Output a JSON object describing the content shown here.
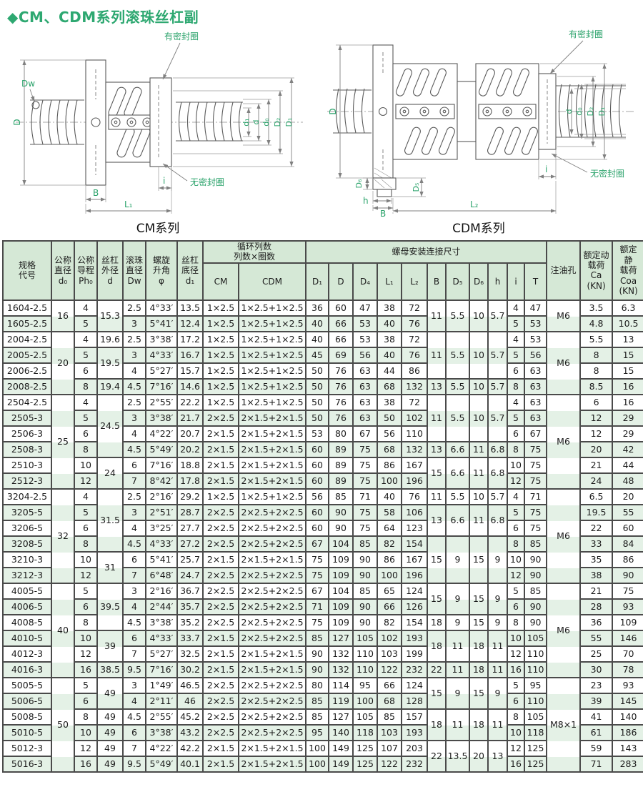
{
  "title": "◆CM、CDM系列滚珠丝杠副",
  "figures": {
    "cm": {
      "caption": "CM系列",
      "seal_top": "有密封圈",
      "seal_bottom": "无密封圈",
      "dim_Dw": "Dw",
      "dim_D": "D",
      "dim_d1": "d₁",
      "dim_d": "d",
      "dim_d0": "d₀",
      "dim_D2": "D₂",
      "dim_D1": "D₁",
      "dim_i": "i",
      "dim_B": "B",
      "dim_L1": "L₁"
    },
    "cdm": {
      "caption": "CDM系列",
      "seal_top": "有密封圈",
      "seal_bottom": "无密封圈",
      "dim_D": "D",
      "dim_d": "d",
      "dim_d0": "d₀",
      "dim_D2": "D₂",
      "dim_D1": "D₁",
      "dim_i": "i",
      "dim_D6": "D₆",
      "dim_D5": "D₅",
      "dim_h": "h",
      "dim_B": "B",
      "dim_L2": "L₂"
    }
  },
  "table": {
    "header": {
      "spec": "规格\n代号",
      "d0": "公称\n直径\nd₀",
      "ph0": "公称\n导程\nPh₀",
      "d": "丝杠\n外径\nd",
      "dw": "滚珠\n直径\nDw",
      "angle": "螺旋\n升角\nφ",
      "d1": "丝杠\n底径\nd₁",
      "circ_group": "循环列数\n列数×圈数",
      "cm": "CM",
      "cdm": "CDM",
      "nut_group": "螺母安装连接尺寸",
      "nut_cols": [
        "D₁",
        "D",
        "D₄",
        "L₁",
        "L₂",
        "B",
        "D₅",
        "D₆",
        "h",
        "i",
        "T"
      ],
      "oil": "注油孔",
      "ca": "额定动\n载荷\nCa\n(KN)",
      "coa": "额定\n静\n载荷\nCoa\n(KN)"
    },
    "rows": [
      {
        "code": "1604-2.5",
        "ph": "4",
        "dw": "2.5",
        "angle": "4°33′",
        "d1": "13.5",
        "cm": "1×2.5",
        "cdm": "1×2.5+1×2.5",
        "D1": "36",
        "D": "60",
        "D4": "47",
        "L1": "38",
        "L2": "72",
        "i": "4",
        "T": "47",
        "ca": "3.5",
        "coa": "6.3"
      },
      {
        "code": "1605-2.5",
        "ph": "5",
        "dw": "3",
        "angle": "5°41′",
        "d1": "12.4",
        "cm": "1×2.5",
        "cdm": "1×2.5+1×2.5",
        "D1": "40",
        "D": "66",
        "D4": "53",
        "L1": "40",
        "L2": "76",
        "i": "5",
        "T": "53",
        "ca": "4.8",
        "coa": "10.5"
      },
      {
        "code": "2004-2.5",
        "ph": "4",
        "dw": "2.5",
        "angle": "3°38′",
        "d1": "17.2",
        "cm": "1×2.5",
        "cdm": "1×2.5+1×2.5",
        "D1": "40",
        "D": "66",
        "D4": "53",
        "L1": "38",
        "L2": "72",
        "i": "4",
        "T": "53",
        "ca": "5.5",
        "coa": "13"
      },
      {
        "code": "2005-2.5",
        "ph": "5",
        "dw": "3",
        "angle": "4°33′",
        "d1": "16.7",
        "cm": "1×2.5",
        "cdm": "1×2.5+1×2.5",
        "D1": "45",
        "D": "69",
        "D4": "56",
        "L1": "40",
        "L2": "76",
        "i": "5",
        "T": "56",
        "ca": "8",
        "coa": "15"
      },
      {
        "code": "2006-2.5",
        "ph": "6",
        "dw": "4",
        "angle": "5°27′",
        "d1": "15.7",
        "cm": "1×2.5",
        "cdm": "1×2.5+1×2.5",
        "D1": "50",
        "D": "76",
        "D4": "63",
        "L1": "44",
        "L2": "86",
        "i": "6",
        "T": "63",
        "ca": "8",
        "coa": "15"
      },
      {
        "code": "2008-2.5",
        "ph": "8",
        "dw": "4.5",
        "angle": "7°16′",
        "d1": "14.6",
        "cm": "1×2.5",
        "cdm": "1×2.5+1×2.5",
        "D1": "50",
        "D": "76",
        "D4": "63",
        "L1": "68",
        "L2": "132",
        "i": "8",
        "T": "63",
        "ca": "8.5",
        "coa": "16"
      },
      {
        "code": "2504-2.5",
        "ph": "4",
        "dw": "2.5",
        "angle": "2°55′",
        "d1": "22.2",
        "cm": "1×2.5",
        "cdm": "1×2.5+1×2.5",
        "D1": "50",
        "D": "76",
        "D4": "63",
        "L1": "38",
        "L2": "72",
        "i": "4",
        "T": "63",
        "ca": "6",
        "coa": "16"
      },
      {
        "code": "2505-3",
        "ph": "5",
        "dw": "3",
        "angle": "3°38′",
        "d1": "21.7",
        "cm": "2×2.5",
        "cdm": "2×1.5+2×1.5",
        "D1": "50",
        "D": "76",
        "D4": "63",
        "L1": "50",
        "L2": "102",
        "i": "5",
        "T": "63",
        "ca": "12",
        "coa": "29"
      },
      {
        "code": "2506-3",
        "ph": "6",
        "dw": "4",
        "angle": "4°22′",
        "d1": "20.7",
        "cm": "2×1.5",
        "cdm": "2×1.5+2×1.5",
        "D1": "53",
        "D": "80",
        "D4": "67",
        "L1": "56",
        "L2": "110",
        "i": "6",
        "T": "67",
        "ca": "12",
        "coa": "29"
      },
      {
        "code": "2508-3",
        "ph": "8",
        "dw": "4.5",
        "angle": "5°49′",
        "d1": "20.2",
        "cm": "2×1.5",
        "cdm": "2×1.5+2×1.5",
        "D1": "60",
        "D": "89",
        "D4": "75",
        "L1": "68",
        "L2": "132",
        "i": "8",
        "T": "75",
        "ca": "20",
        "coa": "42"
      },
      {
        "code": "2510-3",
        "ph": "10",
        "dw": "6",
        "angle": "7°16′",
        "d1": "18.8",
        "cm": "2×1.5",
        "cdm": "2×1.5+2×1.5",
        "D1": "60",
        "D": "89",
        "D4": "75",
        "L1": "86",
        "L2": "167",
        "i": "10",
        "T": "75",
        "ca": "21",
        "coa": "44"
      },
      {
        "code": "2512-3",
        "ph": "12",
        "dw": "7",
        "angle": "8°42′",
        "d1": "17.8",
        "cm": "2×1.5",
        "cdm": "2×1.5+2×1.5",
        "D1": "60",
        "D": "89",
        "D4": "75",
        "L1": "100",
        "L2": "196",
        "i": "12",
        "T": "75",
        "ca": "24",
        "coa": "48"
      },
      {
        "code": "3204-2.5",
        "ph": "4",
        "dw": "2.5",
        "angle": "2°16′",
        "d1": "29.2",
        "cm": "1×2.5",
        "cdm": "1×2.5+1×2.5",
        "D1": "56",
        "D": "85",
        "D4": "71",
        "L1": "40",
        "L2": "76",
        "i": "4",
        "T": "71",
        "ca": "6.5",
        "coa": "20"
      },
      {
        "code": "3205-5",
        "ph": "5",
        "dw": "3",
        "angle": "2°51′",
        "d1": "28.7",
        "cm": "2×2.5",
        "cdm": "2×2.5+2×2.5",
        "D1": "60",
        "D": "90",
        "D4": "75",
        "L1": "58",
        "L2": "106",
        "i": "5",
        "T": "75",
        "ca": "19.5",
        "coa": "55"
      },
      {
        "code": "3206-5",
        "ph": "6",
        "dw": "4",
        "angle": "3°25′",
        "d1": "27.7",
        "cm": "2×2.5",
        "cdm": "2×2.5+2×2.5",
        "D1": "60",
        "D": "90",
        "D4": "75",
        "L1": "64",
        "L2": "123",
        "i": "6",
        "T": "75",
        "ca": "22",
        "coa": "60"
      },
      {
        "code": "3208-5",
        "ph": "8",
        "dw": "4.5",
        "angle": "4°33′",
        "d1": "27.2",
        "cm": "2×2.5",
        "cdm": "2×2.5+2×2.5",
        "D1": "67",
        "D": "104",
        "D4": "85",
        "L1": "82",
        "L2": "154",
        "i": "8",
        "T": "85",
        "ca": "33",
        "coa": "84"
      },
      {
        "code": "3210-3",
        "ph": "10",
        "dw": "6",
        "angle": "5°41′",
        "d1": "25.7",
        "cm": "2×1.5",
        "cdm": "2×1.5+2×1.5",
        "D1": "75",
        "D": "109",
        "D4": "90",
        "L1": "86",
        "L2": "167",
        "i": "10",
        "T": "90",
        "ca": "35",
        "coa": "86"
      },
      {
        "code": "3212-3",
        "ph": "12",
        "dw": "7",
        "angle": "6°48′",
        "d1": "24.7",
        "cm": "2×2.5",
        "cdm": "2×2.5+2×2.5",
        "D1": "75",
        "D": "109",
        "D4": "90",
        "L1": "100",
        "L2": "196",
        "i": "12",
        "T": "90",
        "ca": "38",
        "coa": "90"
      },
      {
        "code": "4005-5",
        "ph": "5",
        "dw": "3",
        "angle": "2°16′",
        "d1": "36.7",
        "cm": "2×2.5",
        "cdm": "2×2.5+2×2.5",
        "D1": "67",
        "D": "104",
        "D4": "85",
        "L1": "65",
        "L2": "124",
        "i": "5",
        "T": "85",
        "ca": "21",
        "coa": "75"
      },
      {
        "code": "4006-5",
        "ph": "6",
        "dw": "4",
        "angle": "2°44′",
        "d1": "35.7",
        "cm": "2×2.5",
        "cdm": "2×2.5+2×2.5",
        "D1": "71",
        "D": "109",
        "D4": "90",
        "L1": "66",
        "L2": "126",
        "i": "6",
        "T": "90",
        "ca": "28",
        "coa": "93"
      },
      {
        "code": "4008-5",
        "ph": "8",
        "dw": "4.5",
        "angle": "3°38′",
        "d1": "35.2",
        "cm": "2×2.5",
        "cdm": "2×2.5+2×2.5",
        "D1": "75",
        "D": "109",
        "D4": "90",
        "L1": "82",
        "L2": "154",
        "i": "8",
        "T": "90",
        "ca": "36",
        "coa": "109"
      },
      {
        "code": "4010-5",
        "ph": "10",
        "dw": "6",
        "angle": "4°33′",
        "d1": "33.7",
        "cm": "2×1.5",
        "cdm": "2×2.5+2×2.5",
        "D1": "85",
        "D": "127",
        "D4": "105",
        "L1": "102",
        "L2": "193",
        "i": "10",
        "T": "105",
        "ca": "55",
        "coa": "146"
      },
      {
        "code": "4012-3",
        "ph": "12",
        "dw": "7",
        "angle": "5°27′",
        "d1": "32.5",
        "cm": "2×1.5",
        "cdm": "2×1.5+2×1.5",
        "D1": "90",
        "D": "132",
        "D4": "110",
        "L1": "103",
        "L2": "199",
        "i": "12",
        "T": "110",
        "ca": "25",
        "coa": "70"
      },
      {
        "code": "4016-3",
        "ph": "16",
        "dw": "9.5",
        "angle": "7°16′",
        "d1": "30.2",
        "cm": "2×1.5",
        "cdm": "2×1.5+2×1.5",
        "D1": "90",
        "D": "132",
        "D4": "110",
        "L1": "122",
        "L2": "232",
        "i": "16",
        "T": "110",
        "ca": "30",
        "coa": "78"
      },
      {
        "code": "5005-5",
        "ph": "5",
        "dw": "3",
        "angle": "1°49′",
        "d1": "46.5",
        "cm": "2×2.5",
        "cdm": "2×2.5+2×2.5",
        "D1": "80",
        "D": "114",
        "D4": "95",
        "L1": "66",
        "L2": "124",
        "i": "5",
        "T": "95",
        "ca": "23",
        "coa": "93"
      },
      {
        "code": "5006-5",
        "ph": "6",
        "dw": "4",
        "angle": "2°11′",
        "d1": "46",
        "cm": "2×2.5",
        "cdm": "2×2.5+2×2.5",
        "D1": "85",
        "D": "119",
        "D4": "100",
        "L1": "68",
        "L2": "128",
        "i": "6",
        "T": "110",
        "ca": "39",
        "coa": "145"
      },
      {
        "code": "5008-5",
        "ph": "8",
        "dw": "4.5",
        "angle": "2°55′",
        "d1": "45.2",
        "cm": "2×2.5",
        "cdm": "2×2.5+2×2.5",
        "D1": "85",
        "D": "127",
        "D4": "105",
        "L1": "85",
        "L2": "157",
        "i": "8",
        "T": "105",
        "ca": "41",
        "coa": "140"
      },
      {
        "code": "5010-5",
        "ph": "10",
        "dw": "6",
        "angle": "3°38′",
        "d1": "43.2",
        "cm": "2×2.5",
        "cdm": "2×2.5+2×2.5",
        "D1": "95",
        "D": "140",
        "D4": "118",
        "L1": "103",
        "L2": "193",
        "i": "10",
        "T": "118",
        "ca": "61",
        "coa": "186"
      },
      {
        "code": "5012-3",
        "ph": "12",
        "dw": "7",
        "angle": "4°22′",
        "d1": "42.2",
        "cm": "2×1.5",
        "cdm": "2×1.5+2×1.5",
        "D1": "100",
        "D": "149",
        "D4": "125",
        "L1": "107",
        "L2": "203",
        "i": "12",
        "T": "125",
        "ca": "59",
        "coa": "143"
      },
      {
        "code": "5016-3",
        "ph": "16",
        "dw": "9.5",
        "angle": "5°49′",
        "d1": "40.1",
        "cm": "2×1.5",
        "cdm": "2×1.5+2×1.5",
        "D1": "100",
        "D": "149",
        "D4": "125",
        "L1": "122",
        "L2": "232",
        "i": "16",
        "T": "125",
        "ca": "71",
        "coa": "283"
      }
    ],
    "merges": {
      "d0": [
        {
          "r": 1,
          "s": 2,
          "v": "16"
        },
        {
          "r": 3,
          "s": 4,
          "v": "20"
        },
        {
          "r": 7,
          "s": 6,
          "v": "25"
        },
        {
          "r": 13,
          "s": 6,
          "v": "32"
        },
        {
          "r": 19,
          "s": 6,
          "v": "40"
        },
        {
          "r": 25,
          "s": 6,
          "v": "50"
        }
      ],
      "d": [
        {
          "r": 1,
          "s": 2,
          "v": "15.3"
        },
        {
          "r": 3,
          "s": 1,
          "v": "19.6"
        },
        {
          "r": 4,
          "s": 2,
          "v": "19.5"
        },
        {
          "r": 6,
          "s": 1,
          "v": "19.4"
        },
        {
          "r": 7,
          "s": 4,
          "v": "24.5"
        },
        {
          "r": 11,
          "s": 2,
          "v": "24"
        },
        {
          "r": 13,
          "s": 4,
          "v": "31.5"
        },
        {
          "r": 17,
          "s": 2,
          "v": "31"
        },
        {
          "r": 19,
          "s": 3,
          "v": "39.5"
        },
        {
          "r": 22,
          "s": 2,
          "v": "39"
        },
        {
          "r": 24,
          "s": 1,
          "v": "38.5"
        },
        {
          "r": 25,
          "s": 2,
          "v": "49"
        },
        {
          "r": 27,
          "s": 1,
          "v": "49"
        },
        {
          "r": 28,
          "s": 1,
          "v": "49"
        },
        {
          "r": 29,
          "s": 1,
          "v": "49"
        },
        {
          "r": 30,
          "s": 1,
          "v": "49"
        }
      ],
      "bdh": [
        {
          "r": 1,
          "s": 2,
          "v": [
            "11",
            "5.5",
            "10",
            "5.7"
          ]
        },
        {
          "r": 3,
          "s": 3,
          "v": [
            "11",
            "5.5",
            "10",
            "5.7"
          ]
        },
        {
          "r": 6,
          "s": 1,
          "v": [
            "13",
            "5.5",
            "10",
            "5.7"
          ]
        },
        {
          "r": 7,
          "s": 3,
          "v": [
            "11",
            "5.5",
            "10",
            "5.7"
          ]
        },
        {
          "r": 10,
          "s": 1,
          "v": [
            "13",
            "6.6",
            "11",
            "6.8"
          ]
        },
        {
          "r": 11,
          "s": 2,
          "v": [
            "15",
            "6.6",
            "11",
            "6.8"
          ]
        },
        {
          "r": 13,
          "s": 1,
          "v": [
            "11",
            "5.5",
            "10",
            "5.7"
          ]
        },
        {
          "r": 14,
          "s": 2,
          "v": [
            "13",
            "6.6",
            "11",
            "6.8"
          ]
        },
        {
          "r": 16,
          "s": 3,
          "v": [
            "15",
            "9",
            "15",
            "9"
          ]
        },
        {
          "r": 19,
          "s": 2,
          "v": [
            "15",
            "9",
            "15",
            "9"
          ]
        },
        {
          "r": 21,
          "s": 1,
          "v": [
            "18",
            "9",
            "15",
            "9"
          ]
        },
        {
          "r": 22,
          "s": 2,
          "v": [
            "18",
            "11",
            "18",
            "11"
          ]
        },
        {
          "r": 24,
          "s": 1,
          "v": [
            "22",
            "11",
            "18",
            "11"
          ]
        },
        {
          "r": 25,
          "s": 2,
          "v": [
            "15",
            "9",
            "15",
            "9"
          ]
        },
        {
          "r": 27,
          "s": 2,
          "v": [
            "18",
            "11",
            "18",
            "11"
          ]
        },
        {
          "r": 29,
          "s": 2,
          "v": [
            "22",
            "13.5",
            "20",
            "13"
          ]
        }
      ],
      "oil": [
        {
          "r": 1,
          "s": 2,
          "v": "M6"
        },
        {
          "r": 3,
          "s": 4,
          "v": "M6"
        },
        {
          "r": 7,
          "s": 6,
          "v": "M6"
        },
        {
          "r": 13,
          "s": 6,
          "v": "M6"
        },
        {
          "r": 19,
          "s": 6,
          "v": "M6"
        },
        {
          "r": 25,
          "s": 6,
          "v": "M8×1"
        }
      ]
    }
  }
}
